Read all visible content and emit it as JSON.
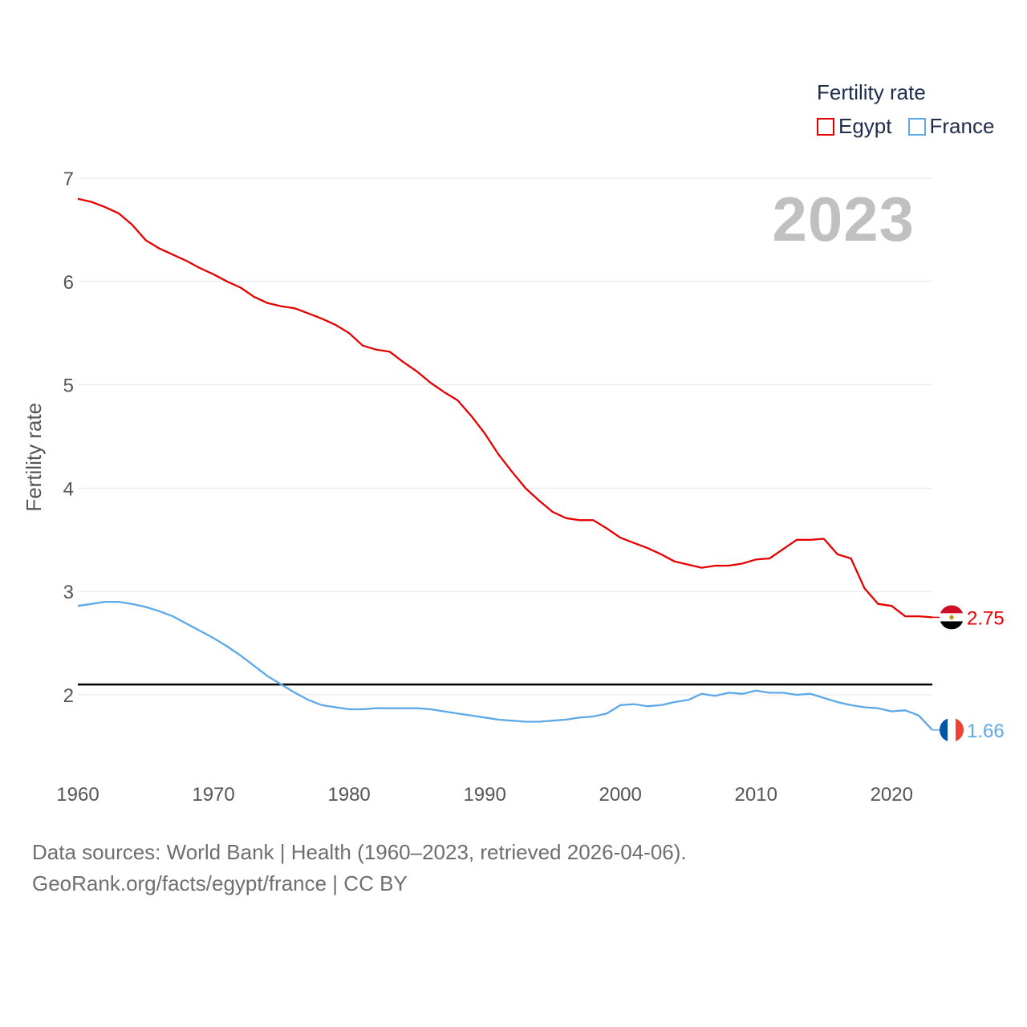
{
  "legend": {
    "title": "Fertility rate",
    "items": [
      {
        "label": "Egypt",
        "color": "#e60000"
      },
      {
        "label": "France",
        "color": "#5ca8e8"
      }
    ]
  },
  "year_label": "2023",
  "footer": {
    "line1": "Data sources: World Bank | Health (1960–2023, retrieved 2026-04-06).",
    "line2": "GeoRank.org/facts/egypt/france | CC BY"
  },
  "chart_data": {
    "type": "line",
    "ylabel": "Fertility rate",
    "xlabel": "",
    "xlim": [
      1960,
      2023
    ],
    "ylim": [
      1.5,
      7.0
    ],
    "x_ticks": [
      1960,
      1970,
      1980,
      1990,
      2000,
      2010,
      2020
    ],
    "y_ticks": [
      2,
      3,
      4,
      5,
      6,
      7
    ],
    "reference_line": 2.1,
    "series": [
      {
        "name": "Egypt",
        "color": "#e60000",
        "end_label": "2.75",
        "x": [
          1960,
          1961,
          1962,
          1963,
          1964,
          1965,
          1966,
          1967,
          1968,
          1969,
          1970,
          1971,
          1972,
          1973,
          1974,
          1975,
          1976,
          1977,
          1978,
          1979,
          1980,
          1981,
          1982,
          1983,
          1984,
          1985,
          1986,
          1987,
          1988,
          1989,
          1990,
          1991,
          1992,
          1993,
          1994,
          1995,
          1996,
          1997,
          1998,
          1999,
          2000,
          2001,
          2002,
          2003,
          2004,
          2005,
          2006,
          2007,
          2008,
          2009,
          2010,
          2011,
          2012,
          2013,
          2014,
          2015,
          2016,
          2017,
          2018,
          2019,
          2020,
          2021,
          2022,
          2023
        ],
        "values": [
          6.8,
          6.77,
          6.72,
          6.66,
          6.55,
          6.4,
          6.32,
          6.26,
          6.2,
          6.13,
          6.07,
          6.0,
          5.94,
          5.85,
          5.79,
          5.76,
          5.74,
          5.69,
          5.64,
          5.58,
          5.5,
          5.38,
          5.34,
          5.32,
          5.22,
          5.13,
          5.02,
          4.93,
          4.85,
          4.7,
          4.53,
          4.33,
          4.16,
          4.0,
          3.88,
          3.77,
          3.71,
          3.69,
          3.69,
          3.61,
          3.52,
          3.47,
          3.42,
          3.36,
          3.29,
          3.26,
          3.23,
          3.25,
          3.25,
          3.27,
          3.31,
          3.32,
          3.41,
          3.5,
          3.5,
          3.51,
          3.36,
          3.32,
          3.03,
          2.88,
          2.86,
          2.76,
          2.76,
          2.75
        ]
      },
      {
        "name": "France",
        "color": "#5ca8e8",
        "end_label": "1.66",
        "x": [
          1960,
          1961,
          1962,
          1963,
          1964,
          1965,
          1966,
          1967,
          1968,
          1969,
          1970,
          1971,
          1972,
          1973,
          1974,
          1975,
          1976,
          1977,
          1978,
          1979,
          1980,
          1981,
          1982,
          1983,
          1984,
          1985,
          1986,
          1987,
          1988,
          1989,
          1990,
          1991,
          1992,
          1993,
          1994,
          1995,
          1996,
          1997,
          1998,
          1999,
          2000,
          2001,
          2002,
          2003,
          2004,
          2005,
          2006,
          2007,
          2008,
          2009,
          2010,
          2011,
          2012,
          2013,
          2014,
          2015,
          2016,
          2017,
          2018,
          2019,
          2020,
          2021,
          2022,
          2023
        ],
        "values": [
          2.86,
          2.88,
          2.9,
          2.9,
          2.88,
          2.85,
          2.81,
          2.76,
          2.69,
          2.62,
          2.55,
          2.47,
          2.38,
          2.28,
          2.18,
          2.1,
          2.02,
          1.95,
          1.9,
          1.88,
          1.86,
          1.86,
          1.87,
          1.87,
          1.87,
          1.87,
          1.86,
          1.84,
          1.82,
          1.8,
          1.78,
          1.76,
          1.75,
          1.74,
          1.74,
          1.75,
          1.76,
          1.78,
          1.79,
          1.82,
          1.9,
          1.91,
          1.89,
          1.9,
          1.93,
          1.95,
          2.01,
          1.99,
          2.02,
          2.01,
          2.04,
          2.02,
          2.02,
          2.0,
          2.01,
          1.97,
          1.93,
          1.9,
          1.88,
          1.87,
          1.84,
          1.85,
          1.8,
          1.66
        ]
      }
    ]
  }
}
